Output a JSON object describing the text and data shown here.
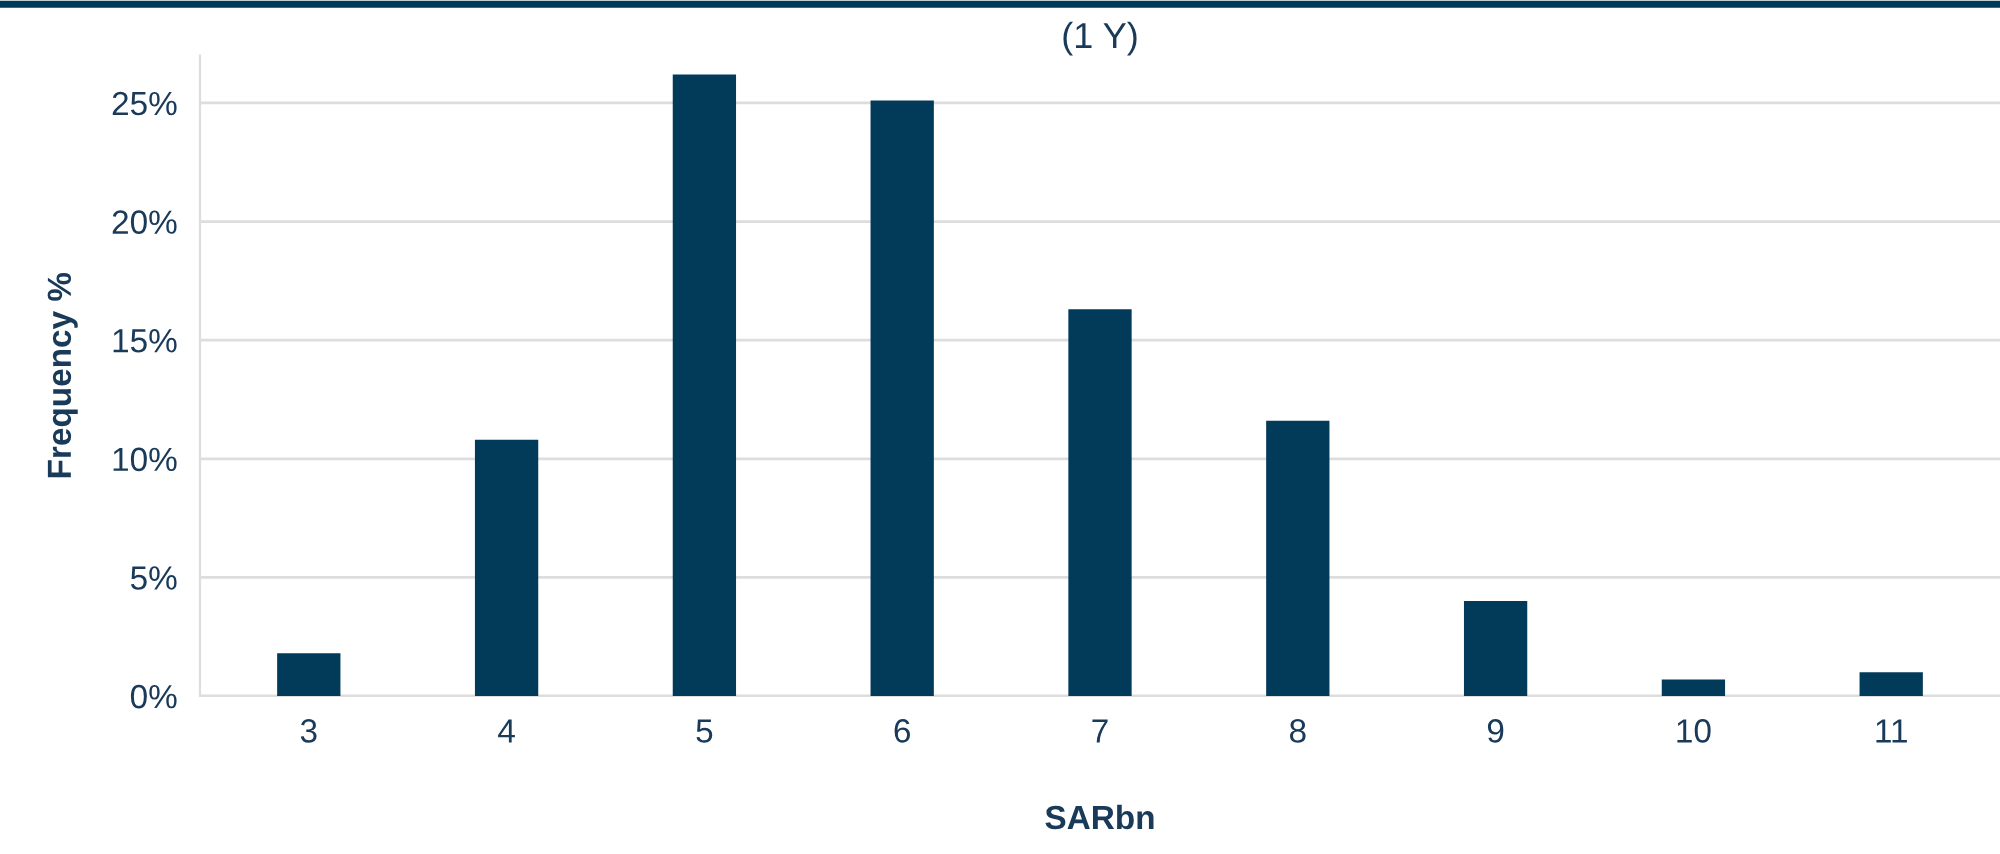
{
  "chart_data": {
    "type": "bar",
    "title": "(1 Y)",
    "xlabel": "SARbn",
    "ylabel": "Frequency %",
    "categories": [
      "3",
      "4",
      "5",
      "6",
      "7",
      "8",
      "9",
      "10",
      "11"
    ],
    "values": [
      1.8,
      10.8,
      26.2,
      25.1,
      16.3,
      11.6,
      4.0,
      0.7,
      1.0
    ],
    "color": "#023a5a",
    "ylim": [
      0,
      27
    ],
    "yticks": [
      {
        "value": 0,
        "label": "0%"
      },
      {
        "value": 5,
        "label": "5%"
      },
      {
        "value": 10,
        "label": "10%"
      },
      {
        "value": 15,
        "label": "15%"
      },
      {
        "value": 20,
        "label": "20%"
      },
      {
        "value": 25,
        "label": "25%"
      }
    ],
    "grid": "y"
  }
}
